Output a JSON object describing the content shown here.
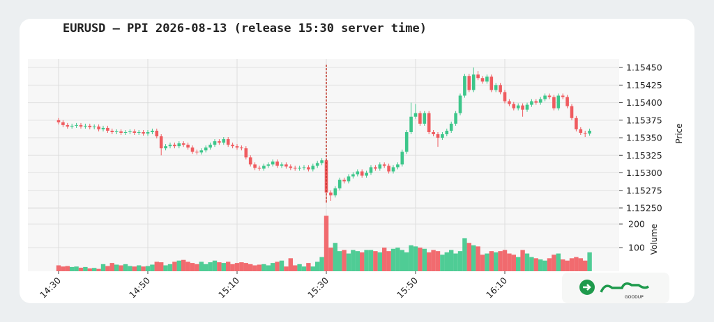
{
  "chart_data": {
    "type": "candlestick",
    "title": "EURUSD — PPI 2026-08-13 (release 15:30 server time)",
    "ylabel": "Price",
    "volume_label": "Volume",
    "x": [
      "14:30",
      "14:31",
      "14:32",
      "14:33",
      "14:34",
      "14:35",
      "14:36",
      "14:37",
      "14:38",
      "14:39",
      "14:40",
      "14:41",
      "14:42",
      "14:43",
      "14:44",
      "14:45",
      "14:46",
      "14:47",
      "14:48",
      "14:49",
      "14:50",
      "14:51",
      "14:52",
      "14:53",
      "14:54",
      "14:55",
      "14:56",
      "14:57",
      "14:58",
      "14:59",
      "15:00",
      "15:01",
      "15:02",
      "15:03",
      "15:04",
      "15:05",
      "15:06",
      "15:07",
      "15:08",
      "15:09",
      "15:10",
      "15:11",
      "15:12",
      "15:13",
      "15:14",
      "15:15",
      "15:16",
      "15:17",
      "15:18",
      "15:19",
      "15:20",
      "15:21",
      "15:22",
      "15:23",
      "15:24",
      "15:25",
      "15:26",
      "15:27",
      "15:28",
      "15:29",
      "15:30",
      "15:31",
      "15:32",
      "15:33",
      "15:34",
      "15:35",
      "15:36",
      "15:37",
      "15:38",
      "15:39",
      "15:40",
      "15:41",
      "15:42",
      "15:43",
      "15:44",
      "15:45",
      "15:46",
      "15:47",
      "15:48",
      "15:49",
      "15:50",
      "15:51",
      "15:52",
      "15:53",
      "15:54",
      "15:55",
      "15:56",
      "15:57",
      "15:58",
      "15:59",
      "16:00",
      "16:01",
      "16:02",
      "16:03",
      "16:04",
      "16:05",
      "16:06",
      "16:07",
      "16:08",
      "16:09",
      "16:10",
      "16:11",
      "16:12",
      "16:13",
      "16:14",
      "16:15",
      "16:16",
      "16:17",
      "16:18",
      "16:19",
      "16:20",
      "16:21",
      "16:22",
      "16:23",
      "16:24",
      "16:25",
      "16:26",
      "16:27",
      "16:28",
      "16:29"
    ],
    "open": [
      1.15375,
      1.15372,
      1.15368,
      1.15366,
      1.15367,
      1.15368,
      1.15366,
      1.15367,
      1.15365,
      1.15366,
      1.15362,
      1.15364,
      1.1536,
      1.15358,
      1.15359,
      1.15357,
      1.15358,
      1.15359,
      1.15357,
      1.15358,
      1.15356,
      1.15358,
      1.1536,
      1.15352,
      1.15335,
      1.15338,
      1.1534,
      1.15338,
      1.15342,
      1.1534,
      1.15336,
      1.1533,
      1.15329,
      1.15332,
      1.15336,
      1.1534,
      1.15345,
      1.15343,
      1.15348,
      1.1534,
      1.15338,
      1.15336,
      1.15335,
      1.15322,
      1.15312,
      1.15307,
      1.15306,
      1.1531,
      1.15312,
      1.15316,
      1.1531,
      1.15312,
      1.15309,
      1.15307,
      1.15306,
      1.15307,
      1.15308,
      1.15305,
      1.1531,
      1.15314,
      1.15318,
      1.15272,
      1.15268,
      1.15278,
      1.1529,
      1.15288,
      1.15295,
      1.15298,
      1.15302,
      1.15296,
      1.153,
      1.15308,
      1.15306,
      1.15312,
      1.1531,
      1.15302,
      1.15308,
      1.15312,
      1.1533,
      1.15358,
      1.1538,
      1.15385,
      1.1537,
      1.15385,
      1.15358,
      1.15355,
      1.1535,
      1.15355,
      1.1536,
      1.1537,
      1.15385,
      1.1541,
      1.15438,
      1.15418,
      1.1544,
      1.15435,
      1.1543,
      1.15437,
      1.15418,
      1.15425,
      1.15415,
      1.15402,
      1.15398,
      1.15392,
      1.15396,
      1.1539,
      1.15397,
      1.15402,
      1.154,
      1.15405,
      1.1541,
      1.15408,
      1.15392,
      1.1541,
      1.15408,
      1.15395,
      1.15378,
      1.15362,
      1.15357,
      1.15356
    ],
    "high": [
      1.15378,
      1.15375,
      1.15371,
      1.1537,
      1.15371,
      1.15371,
      1.1537,
      1.1537,
      1.15369,
      1.15369,
      1.15367,
      1.15367,
      1.15363,
      1.15362,
      1.15362,
      1.15361,
      1.15362,
      1.15362,
      1.15361,
      1.15361,
      1.15361,
      1.15363,
      1.15363,
      1.15355,
      1.15341,
      1.15343,
      1.15343,
      1.15345,
      1.15345,
      1.15343,
      1.15339,
      1.15333,
      1.15335,
      1.15339,
      1.15343,
      1.15348,
      1.15348,
      1.15351,
      1.15351,
      1.15343,
      1.15341,
      1.15339,
      1.15338,
      1.15325,
      1.15315,
      1.1531,
      1.15313,
      1.15315,
      1.15319,
      1.15319,
      1.15315,
      1.15315,
      1.15312,
      1.1531,
      1.1531,
      1.15311,
      1.15311,
      1.15313,
      1.15317,
      1.15321,
      1.15321,
      1.15275,
      1.15281,
      1.15293,
      1.15293,
      1.15298,
      1.15301,
      1.15305,
      1.15305,
      1.15303,
      1.15311,
      1.15311,
      1.15315,
      1.15315,
      1.15313,
      1.15311,
      1.15315,
      1.15333,
      1.15361,
      1.154,
      1.15398,
      1.15388,
      1.15388,
      1.15388,
      1.15361,
      1.15358,
      1.15358,
      1.15363,
      1.15373,
      1.15388,
      1.15413,
      1.15441,
      1.15441,
      1.1545,
      1.15445,
      1.15438,
      1.1544,
      1.1544,
      1.15428,
      1.15428,
      1.15418,
      1.15405,
      1.15401,
      1.15399,
      1.15399,
      1.154,
      1.15405,
      1.15405,
      1.15408,
      1.15413,
      1.15413,
      1.15411,
      1.15413,
      1.15413,
      1.15411,
      1.15398,
      1.15381,
      1.15365,
      1.1536,
      1.15363
    ],
    "low": [
      1.15369,
      1.15365,
      1.15363,
      1.15363,
      1.15364,
      1.15363,
      1.15363,
      1.15362,
      1.15362,
      1.15359,
      1.15359,
      1.15357,
      1.15355,
      1.15355,
      1.15354,
      1.15354,
      1.15355,
      1.15354,
      1.15354,
      1.15353,
      1.15353,
      1.15355,
      1.15349,
      1.15325,
      1.15332,
      1.15335,
      1.15335,
      1.15335,
      1.15337,
      1.15333,
      1.15327,
      1.15326,
      1.15326,
      1.15329,
      1.15333,
      1.15337,
      1.1534,
      1.1534,
      1.15337,
      1.15335,
      1.15333,
      1.15332,
      1.15319,
      1.15309,
      1.15304,
      1.15303,
      1.15303,
      1.15307,
      1.15309,
      1.15307,
      1.15307,
      1.15306,
      1.15304,
      1.15303,
      1.15303,
      1.15304,
      1.15302,
      1.15302,
      1.15307,
      1.15311,
      1.15257,
      1.1526,
      1.15265,
      1.15275,
      1.15285,
      1.15285,
      1.15292,
      1.15295,
      1.15293,
      1.15293,
      1.15297,
      1.15303,
      1.15303,
      1.15307,
      1.15299,
      1.15299,
      1.15305,
      1.15309,
      1.15327,
      1.15355,
      1.15377,
      1.15367,
      1.15367,
      1.15355,
      1.15352,
      1.15337,
      1.15347,
      1.15352,
      1.15357,
      1.15367,
      1.15382,
      1.15407,
      1.15415,
      1.15415,
      1.15432,
      1.15427,
      1.15427,
      1.15415,
      1.15415,
      1.15412,
      1.15399,
      1.15395,
      1.15389,
      1.15389,
      1.1538,
      1.15387,
      1.15394,
      1.15397,
      1.15397,
      1.15402,
      1.15405,
      1.15389,
      1.15389,
      1.15405,
      1.15392,
      1.15375,
      1.15359,
      1.15354,
      1.15351,
      1.15353
    ],
    "close": [
      1.15372,
      1.15368,
      1.15366,
      1.15367,
      1.15368,
      1.15366,
      1.15367,
      1.15365,
      1.15366,
      1.15362,
      1.15364,
      1.1536,
      1.15358,
      1.15359,
      1.15357,
      1.15358,
      1.15359,
      1.15357,
      1.15358,
      1.15356,
      1.15358,
      1.1536,
      1.15352,
      1.15335,
      1.15338,
      1.1534,
      1.15338,
      1.15342,
      1.1534,
      1.15336,
      1.1533,
      1.15329,
      1.15332,
      1.15336,
      1.1534,
      1.15345,
      1.15343,
      1.15348,
      1.1534,
      1.15338,
      1.15336,
      1.15335,
      1.15322,
      1.15312,
      1.15307,
      1.15306,
      1.1531,
      1.15312,
      1.15316,
      1.1531,
      1.15312,
      1.15309,
      1.15307,
      1.15306,
      1.15307,
      1.15308,
      1.15305,
      1.1531,
      1.15314,
      1.15318,
      1.15272,
      1.15268,
      1.15278,
      1.1529,
      1.15288,
      1.15295,
      1.15298,
      1.15302,
      1.15296,
      1.153,
      1.15308,
      1.15306,
      1.15312,
      1.1531,
      1.15302,
      1.15308,
      1.15312,
      1.1533,
      1.15358,
      1.1538,
      1.15385,
      1.1537,
      1.15385,
      1.15358,
      1.15355,
      1.1535,
      1.15355,
      1.1536,
      1.1537,
      1.15385,
      1.1541,
      1.15438,
      1.15418,
      1.1544,
      1.15435,
      1.1543,
      1.15437,
      1.15418,
      1.15425,
      1.15415,
      1.15402,
      1.15398,
      1.15392,
      1.15396,
      1.1539,
      1.15397,
      1.15402,
      1.154,
      1.15405,
      1.1541,
      1.15408,
      1.15392,
      1.1541,
      1.15408,
      1.15395,
      1.15378,
      1.15362,
      1.15357,
      1.15356,
      1.1536
    ],
    "volume": [
      25,
      20,
      22,
      18,
      20,
      15,
      18,
      12,
      14,
      10,
      30,
      22,
      35,
      28,
      25,
      30,
      22,
      20,
      25,
      20,
      22,
      28,
      40,
      38,
      25,
      30,
      40,
      45,
      48,
      40,
      35,
      30,
      40,
      30,
      38,
      45,
      38,
      35,
      40,
      30,
      35,
      38,
      35,
      30,
      25,
      28,
      30,
      25,
      35,
      40,
      45,
      20,
      55,
      25,
      30,
      20,
      35,
      20,
      40,
      60,
      235,
      100,
      120,
      85,
      90,
      75,
      90,
      85,
      80,
      90,
      90,
      85,
      80,
      100,
      85,
      95,
      100,
      90,
      80,
      110,
      105,
      100,
      95,
      80,
      90,
      85,
      70,
      80,
      90,
      75,
      85,
      140,
      120,
      110,
      105,
      70,
      75,
      85,
      80,
      85,
      90,
      75,
      70,
      60,
      90,
      75,
      60,
      55,
      50,
      45,
      55,
      70,
      75,
      50,
      45,
      55,
      60,
      55,
      45,
      80
    ],
    "ylim": [
      1.1525,
      1.15462
    ],
    "yticks": [
      {
        "value": 1.1525,
        "label": "1.15250"
      },
      1.15275,
      {
        "value": 1.153,
        "label": "1.15300"
      },
      1.15325,
      {
        "value": 1.1535,
        "label": "1.15350"
      },
      1.15375,
      {
        "value": 1.154,
        "label": "1.15400"
      },
      1.15425,
      {
        "value": 1.1545,
        "label": "1.15450"
      }
    ],
    "volume_ylim": [
      0,
      265
    ],
    "volume_yticks": [
      100,
      200
    ],
    "xticks": [
      "14:30",
      "14:50",
      "15:10",
      "15:30",
      "15:50",
      "16:10"
    ],
    "event_x": "15:30",
    "event_color": "#c0392b",
    "up_color": "#3cc68a",
    "down_color": "#ef5b5f",
    "grid": true
  },
  "watermark": "GOODUP"
}
